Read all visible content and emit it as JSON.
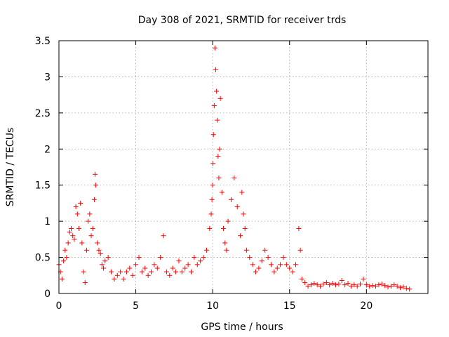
{
  "chart_data": {
    "type": "scatter",
    "title": "Day 308 of 2021, SRMTID for receiver trds",
    "xlabel": "GPS time / hours",
    "ylabel": "SRMTID / TECUs",
    "xlim": [
      0,
      24
    ],
    "ylim": [
      0,
      3.5
    ],
    "xticks": [
      0,
      5,
      10,
      15,
      20
    ],
    "xtick_labels": [
      "0",
      "5",
      "10",
      "15",
      "20"
    ],
    "yticks": [
      0,
      0.5,
      1,
      1.5,
      2,
      2.5,
      3,
      3.5
    ],
    "ytick_labels": [
      "0",
      "0.5",
      "1",
      "1.5",
      "2",
      "2.5",
      "3",
      "3.5"
    ],
    "grid": true,
    "marker": "+",
    "marker_color": "#ff0000",
    "series": [
      {
        "name": "SRMTID",
        "x": [
          0.0,
          0.1,
          0.2,
          0.3,
          0.4,
          0.5,
          0.6,
          0.7,
          0.8,
          0.9,
          1.0,
          1.1,
          1.2,
          1.3,
          1.4,
          1.5,
          1.6,
          1.7,
          1.8,
          1.9,
          2.0,
          2.1,
          2.2,
          2.3,
          2.35,
          2.4,
          2.5,
          2.6,
          2.7,
          2.8,
          2.9,
          3.0,
          3.2,
          3.4,
          3.6,
          3.8,
          4.0,
          4.2,
          4.4,
          4.6,
          4.8,
          5.0,
          5.2,
          5.4,
          5.6,
          5.8,
          6.0,
          6.2,
          6.4,
          6.6,
          6.8,
          7.0,
          7.2,
          7.4,
          7.6,
          7.8,
          8.0,
          8.2,
          8.4,
          8.6,
          8.8,
          9.0,
          9.2,
          9.4,
          9.6,
          9.8,
          9.9,
          9.95,
          10.0,
          10.02,
          10.05,
          10.1,
          10.15,
          10.2,
          10.25,
          10.3,
          10.35,
          10.4,
          10.45,
          10.5,
          10.6,
          10.7,
          10.8,
          10.9,
          11.0,
          11.2,
          11.4,
          11.6,
          11.8,
          11.9,
          12.0,
          12.1,
          12.2,
          12.4,
          12.6,
          12.8,
          13.0,
          13.2,
          13.4,
          13.6,
          13.8,
          14.0,
          14.2,
          14.4,
          14.6,
          14.8,
          15.0,
          15.2,
          15.4,
          15.6,
          15.7,
          15.8,
          16.0,
          16.2,
          16.4,
          16.6,
          16.8,
          17.0,
          17.2,
          17.4,
          17.6,
          17.8,
          18.0,
          18.2,
          18.4,
          18.6,
          18.8,
          19.0,
          19.2,
          19.4,
          19.6,
          19.8,
          20.0,
          20.2,
          20.4,
          20.6,
          20.8,
          21.0,
          21.2,
          21.4,
          21.6,
          21.8,
          22.0,
          22.2,
          22.4,
          22.6,
          22.8
        ],
        "y": [
          0.4,
          0.3,
          0.2,
          0.45,
          0.6,
          0.5,
          0.7,
          0.85,
          0.9,
          0.8,
          0.75,
          1.2,
          1.1,
          0.9,
          1.25,
          0.7,
          0.3,
          0.15,
          0.6,
          1.0,
          1.1,
          0.8,
          0.9,
          1.3,
          1.65,
          1.5,
          0.7,
          0.6,
          0.55,
          0.4,
          0.35,
          0.45,
          0.5,
          0.3,
          0.2,
          0.25,
          0.3,
          0.2,
          0.3,
          0.35,
          0.25,
          0.4,
          0.5,
          0.3,
          0.35,
          0.25,
          0.3,
          0.4,
          0.35,
          0.5,
          0.8,
          0.3,
          0.25,
          0.35,
          0.3,
          0.45,
          0.3,
          0.35,
          0.4,
          0.3,
          0.5,
          0.4,
          0.45,
          0.5,
          0.6,
          0.9,
          1.1,
          1.3,
          1.5,
          1.8,
          2.2,
          2.6,
          3.4,
          3.1,
          2.8,
          2.4,
          1.9,
          1.6,
          2.0,
          2.7,
          1.4,
          0.9,
          0.7,
          0.6,
          1.0,
          1.3,
          1.6,
          1.2,
          0.8,
          1.4,
          1.1,
          0.9,
          0.6,
          0.5,
          0.4,
          0.3,
          0.35,
          0.45,
          0.6,
          0.5,
          0.4,
          0.3,
          0.35,
          0.4,
          0.5,
          0.4,
          0.35,
          0.3,
          0.4,
          0.9,
          0.6,
          0.2,
          0.15,
          0.1,
          0.12,
          0.14,
          0.12,
          0.1,
          0.13,
          0.15,
          0.12,
          0.14,
          0.12,
          0.13,
          0.18,
          0.12,
          0.14,
          0.1,
          0.12,
          0.1,
          0.13,
          0.2,
          0.12,
          0.1,
          0.11,
          0.1,
          0.12,
          0.13,
          0.11,
          0.09,
          0.1,
          0.12,
          0.1,
          0.08,
          0.09,
          0.07,
          0.06
        ]
      }
    ]
  }
}
